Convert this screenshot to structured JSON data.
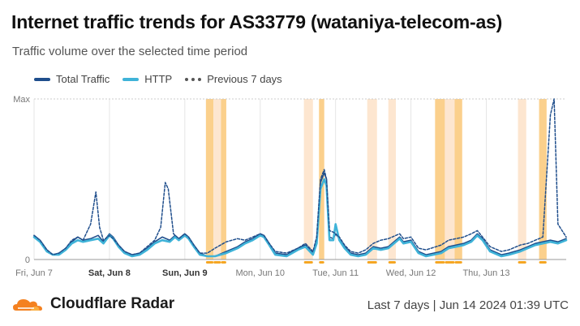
{
  "title": "Internet traffic trends for AS33779 (wataniya-telecom-as)",
  "subtitle": "Traffic volume over the selected time period",
  "brand": "Cloudflare Radar",
  "footer": {
    "range": "Last 7 days",
    "separator": "|",
    "timestamp": "Jun 14 2024 01:39 UTC"
  },
  "colors": {
    "total": "#1f4e8c",
    "http": "#3fb3d8",
    "previous": "#555555",
    "outage_light": "#fde6d0",
    "outage_strong": "#fbd08c",
    "outage_marker": "#f5a623"
  },
  "chart_data": {
    "type": "line",
    "x_ticks": [
      {
        "label": "Fri, Jun 7",
        "bold": false
      },
      {
        "label": "Sat, Jun 8",
        "bold": true
      },
      {
        "label": "Sun, Jun 9",
        "bold": true
      },
      {
        "label": "Mon, Jun 10",
        "bold": false
      },
      {
        "label": "Tue, Jun 11",
        "bold": false
      },
      {
        "label": "Wed, Jun 12",
        "bold": false
      },
      {
        "label": "Thu, Jun 13",
        "bold": false
      }
    ],
    "y_ticks": [
      "Max",
      "0"
    ],
    "xlim_days": [
      0,
      7.06
    ],
    "ylim": [
      0,
      100
    ],
    "grid": true,
    "legend_placement": "top-left",
    "series": [
      {
        "name": "Total Traffic",
        "style": "solid",
        "points": [
          [
            0,
            15
          ],
          [
            0.08,
            12
          ],
          [
            0.17,
            6
          ],
          [
            0.25,
            3
          ],
          [
            0.33,
            4
          ],
          [
            0.42,
            7
          ],
          [
            0.5,
            11
          ],
          [
            0.58,
            14
          ],
          [
            0.65,
            12
          ],
          [
            0.75,
            13
          ],
          [
            0.85,
            15
          ],
          [
            0.92,
            11
          ],
          [
            1.0,
            16
          ],
          [
            1.05,
            14
          ],
          [
            1.12,
            9
          ],
          [
            1.2,
            5
          ],
          [
            1.3,
            3
          ],
          [
            1.4,
            4
          ],
          [
            1.5,
            7
          ],
          [
            1.6,
            11
          ],
          [
            1.7,
            14
          ],
          [
            1.8,
            12
          ],
          [
            1.87,
            15
          ],
          [
            1.92,
            13
          ],
          [
            2.0,
            16
          ],
          [
            2.05,
            14
          ],
          [
            2.12,
            9
          ],
          [
            2.2,
            4
          ],
          [
            2.3,
            2
          ],
          [
            2.4,
            2
          ],
          [
            2.55,
            5
          ],
          [
            2.7,
            8
          ],
          [
            2.8,
            11
          ],
          [
            2.9,
            13
          ],
          [
            3.0,
            16
          ],
          [
            3.05,
            15
          ],
          [
            3.12,
            10
          ],
          [
            3.2,
            4
          ],
          [
            3.35,
            3
          ],
          [
            3.5,
            7
          ],
          [
            3.6,
            9
          ],
          [
            3.7,
            4
          ],
          [
            3.75,
            12
          ],
          [
            3.8,
            48
          ],
          [
            3.85,
            54
          ],
          [
            3.88,
            50
          ],
          [
            3.92,
            14
          ],
          [
            3.97,
            13
          ],
          [
            4.0,
            16
          ],
          [
            4.05,
            13
          ],
          [
            4.12,
            8
          ],
          [
            4.2,
            4
          ],
          [
            4.3,
            3
          ],
          [
            4.4,
            4
          ],
          [
            4.5,
            8
          ],
          [
            4.6,
            7
          ],
          [
            4.7,
            8
          ],
          [
            4.8,
            12
          ],
          [
            4.85,
            14
          ],
          [
            4.9,
            11
          ],
          [
            5.0,
            12
          ],
          [
            5.1,
            5
          ],
          [
            5.2,
            3
          ],
          [
            5.4,
            5
          ],
          [
            5.5,
            8
          ],
          [
            5.6,
            9
          ],
          [
            5.7,
            10
          ],
          [
            5.8,
            12
          ],
          [
            5.88,
            16
          ],
          [
            5.95,
            13
          ],
          [
            6.05,
            6
          ],
          [
            6.2,
            3
          ],
          [
            6.3,
            4
          ],
          [
            6.45,
            6
          ],
          [
            6.55,
            8
          ],
          [
            6.65,
            10
          ],
          [
            6.75,
            11
          ],
          [
            6.85,
            12
          ],
          [
            6.95,
            11
          ],
          [
            7.06,
            13
          ]
        ]
      },
      {
        "name": "HTTP",
        "style": "solid",
        "points": [
          [
            0,
            14
          ],
          [
            0.08,
            11
          ],
          [
            0.17,
            5
          ],
          [
            0.25,
            3
          ],
          [
            0.33,
            3
          ],
          [
            0.42,
            6
          ],
          [
            0.5,
            10
          ],
          [
            0.58,
            12
          ],
          [
            0.65,
            11
          ],
          [
            0.75,
            12
          ],
          [
            0.85,
            13
          ],
          [
            0.92,
            10
          ],
          [
            1.0,
            15
          ],
          [
            1.05,
            13
          ],
          [
            1.12,
            8
          ],
          [
            1.2,
            4
          ],
          [
            1.3,
            2
          ],
          [
            1.4,
            3
          ],
          [
            1.5,
            6
          ],
          [
            1.6,
            10
          ],
          [
            1.7,
            12
          ],
          [
            1.8,
            11
          ],
          [
            1.87,
            14
          ],
          [
            1.92,
            12
          ],
          [
            2.0,
            15
          ],
          [
            2.05,
            13
          ],
          [
            2.12,
            8
          ],
          [
            2.2,
            3
          ],
          [
            2.3,
            2
          ],
          [
            2.4,
            2
          ],
          [
            2.55,
            4
          ],
          [
            2.7,
            7
          ],
          [
            2.8,
            10
          ],
          [
            2.9,
            12
          ],
          [
            3.0,
            15
          ],
          [
            3.05,
            14
          ],
          [
            3.12,
            9
          ],
          [
            3.2,
            3
          ],
          [
            3.35,
            2
          ],
          [
            3.5,
            6
          ],
          [
            3.6,
            8
          ],
          [
            3.7,
            3
          ],
          [
            3.75,
            10
          ],
          [
            3.8,
            44
          ],
          [
            3.85,
            50
          ],
          [
            3.88,
            46
          ],
          [
            3.92,
            12
          ],
          [
            3.97,
            12
          ],
          [
            4.0,
            22
          ],
          [
            4.05,
            12
          ],
          [
            4.12,
            7
          ],
          [
            4.2,
            3
          ],
          [
            4.3,
            2
          ],
          [
            4.4,
            3
          ],
          [
            4.5,
            7
          ],
          [
            4.6,
            6
          ],
          [
            4.7,
            7
          ],
          [
            4.8,
            11
          ],
          [
            4.85,
            13
          ],
          [
            4.9,
            10
          ],
          [
            5.0,
            11
          ],
          [
            5.1,
            4
          ],
          [
            5.2,
            2
          ],
          [
            5.4,
            4
          ],
          [
            5.5,
            7
          ],
          [
            5.6,
            8
          ],
          [
            5.7,
            9
          ],
          [
            5.8,
            11
          ],
          [
            5.88,
            15
          ],
          [
            5.95,
            12
          ],
          [
            6.05,
            5
          ],
          [
            6.2,
            2
          ],
          [
            6.3,
            3
          ],
          [
            6.45,
            5
          ],
          [
            6.55,
            7
          ],
          [
            6.65,
            9
          ],
          [
            6.75,
            10
          ],
          [
            6.85,
            11
          ],
          [
            6.95,
            10
          ],
          [
            7.06,
            12
          ]
        ]
      },
      {
        "name": "Previous 7 days",
        "style": "dotted",
        "points": [
          [
            0,
            15
          ],
          [
            0.08,
            12
          ],
          [
            0.17,
            6
          ],
          [
            0.25,
            3
          ],
          [
            0.33,
            4
          ],
          [
            0.42,
            7
          ],
          [
            0.5,
            12
          ],
          [
            0.58,
            14
          ],
          [
            0.65,
            12
          ],
          [
            0.75,
            22
          ],
          [
            0.82,
            42
          ],
          [
            0.87,
            20
          ],
          [
            0.92,
            12
          ],
          [
            1.0,
            15
          ],
          [
            1.05,
            13
          ],
          [
            1.12,
            9
          ],
          [
            1.2,
            5
          ],
          [
            1.3,
            3
          ],
          [
            1.4,
            4
          ],
          [
            1.5,
            8
          ],
          [
            1.6,
            12
          ],
          [
            1.68,
            20
          ],
          [
            1.74,
            48
          ],
          [
            1.78,
            44
          ],
          [
            1.85,
            16
          ],
          [
            1.92,
            13
          ],
          [
            2.0,
            16
          ],
          [
            2.05,
            14
          ],
          [
            2.12,
            9
          ],
          [
            2.2,
            4
          ],
          [
            2.3,
            4
          ],
          [
            2.4,
            7
          ],
          [
            2.55,
            11
          ],
          [
            2.7,
            13
          ],
          [
            2.8,
            12
          ],
          [
            2.9,
            14
          ],
          [
            3.0,
            16
          ],
          [
            3.05,
            15
          ],
          [
            3.12,
            10
          ],
          [
            3.2,
            5
          ],
          [
            3.35,
            4
          ],
          [
            3.5,
            7
          ],
          [
            3.6,
            10
          ],
          [
            3.7,
            5
          ],
          [
            3.75,
            14
          ],
          [
            3.8,
            50
          ],
          [
            3.85,
            56
          ],
          [
            3.88,
            50
          ],
          [
            3.92,
            18
          ],
          [
            3.97,
            17
          ],
          [
            4.0,
            16
          ],
          [
            4.05,
            14
          ],
          [
            4.12,
            9
          ],
          [
            4.2,
            5
          ],
          [
            4.3,
            4
          ],
          [
            4.4,
            6
          ],
          [
            4.5,
            10
          ],
          [
            4.6,
            12
          ],
          [
            4.7,
            13
          ],
          [
            4.8,
            15
          ],
          [
            4.85,
            16
          ],
          [
            4.9,
            13
          ],
          [
            5.0,
            14
          ],
          [
            5.1,
            7
          ],
          [
            5.2,
            6
          ],
          [
            5.4,
            9
          ],
          [
            5.5,
            12
          ],
          [
            5.6,
            13
          ],
          [
            5.7,
            14
          ],
          [
            5.8,
            16
          ],
          [
            5.88,
            18
          ],
          [
            5.95,
            14
          ],
          [
            6.05,
            8
          ],
          [
            6.2,
            5
          ],
          [
            6.3,
            6
          ],
          [
            6.45,
            9
          ],
          [
            6.55,
            10
          ],
          [
            6.65,
            12
          ],
          [
            6.75,
            14
          ],
          [
            6.85,
            90
          ],
          [
            6.9,
            100
          ],
          [
            6.95,
            22
          ],
          [
            7.06,
            14
          ]
        ]
      }
    ],
    "outage_bands": [
      {
        "start": 2.28,
        "end": 2.38,
        "level": "strong"
      },
      {
        "start": 2.38,
        "end": 2.48,
        "level": "light"
      },
      {
        "start": 2.48,
        "end": 2.55,
        "level": "strong"
      },
      {
        "start": 3.58,
        "end": 3.7,
        "level": "light"
      },
      {
        "start": 3.78,
        "end": 3.85,
        "level": "strong"
      },
      {
        "start": 4.42,
        "end": 4.55,
        "level": "light"
      },
      {
        "start": 4.7,
        "end": 4.8,
        "level": "light"
      },
      {
        "start": 5.32,
        "end": 5.45,
        "level": "strong"
      },
      {
        "start": 5.45,
        "end": 5.58,
        "level": "light"
      },
      {
        "start": 5.58,
        "end": 5.68,
        "level": "strong"
      },
      {
        "start": 6.42,
        "end": 6.53,
        "level": "light"
      },
      {
        "start": 6.7,
        "end": 6.8,
        "level": "strong"
      }
    ]
  }
}
